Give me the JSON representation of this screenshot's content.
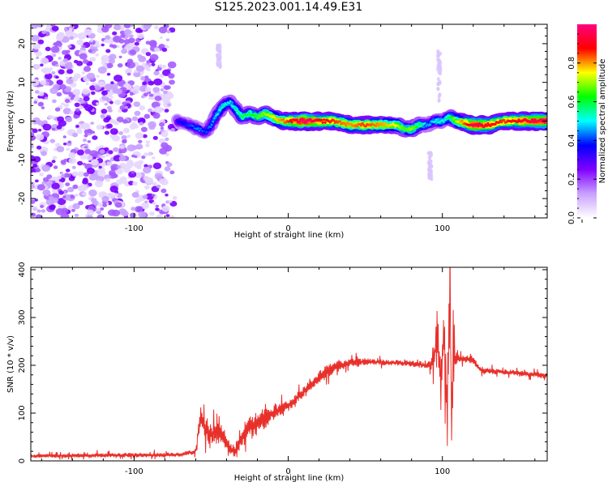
{
  "title": "S125.2023.001.14.49.E31",
  "chart_data": [
    {
      "type": "heatmap",
      "xlabel": "Height of straight line (km)",
      "ylabel": "Frequency (Hz)",
      "xlim": [
        -167,
        168
      ],
      "ylim": [
        -25,
        25
      ],
      "x_ticks": [
        -100,
        0,
        100
      ],
      "y_ticks": [
        -20,
        -10,
        0,
        10,
        20
      ],
      "colorbar": {
        "label": "Normalized spectral amplitude",
        "range": [
          0.0,
          1.0
        ],
        "ticks": [
          0.0,
          0.2,
          0.4,
          0.6,
          0.8
        ],
        "colors": [
          "#ffffff",
          "#c9a0ff",
          "#8000ff",
          "#0000ff",
          "#00ffff",
          "#00ff00",
          "#ffff00",
          "#ff0000",
          "#ff0080"
        ]
      },
      "noise_region_x": [
        -167,
        -75
      ],
      "signal_trace": {
        "x": [
          -72,
          -65,
          -58,
          -54,
          -50,
          -46,
          -42,
          -38,
          -34,
          -30,
          -25,
          -20,
          -15,
          -10,
          -5,
          0,
          10,
          20,
          30,
          40,
          50,
          60,
          70,
          75,
          80,
          85,
          90,
          95,
          98,
          100,
          105,
          110,
          120,
          130,
          140,
          150,
          160,
          168
        ],
        "y": [
          0,
          -1,
          -2,
          -3,
          -1,
          2,
          4,
          5,
          3,
          1,
          2,
          1,
          2,
          1,
          0,
          0,
          0,
          0,
          0,
          -1,
          -1,
          -1,
          -1,
          -2,
          -2,
          -1,
          -1,
          0,
          0,
          0,
          1,
          0,
          -1,
          -1,
          0,
          0,
          0,
          0
        ],
        "amplitude": [
          0.3,
          0.35,
          0.4,
          0.35,
          0.4,
          0.45,
          0.5,
          0.45,
          0.5,
          0.55,
          0.55,
          0.6,
          0.65,
          0.7,
          0.75,
          0.8,
          0.95,
          0.85,
          0.8,
          0.75,
          0.8,
          0.75,
          0.7,
          0.6,
          0.65,
          0.55,
          0.4,
          0.45,
          0.5,
          0.45,
          0.55,
          0.7,
          0.9,
          0.85,
          0.8,
          0.85,
          0.9,
          0.9
        ]
      }
    },
    {
      "type": "line",
      "xlabel": "Height of straight line (km)",
      "ylabel": "SNR (10 * v/v)",
      "xlim": [
        -167,
        168
      ],
      "ylim": [
        0,
        405
      ],
      "x_ticks": [
        -100,
        0,
        100
      ],
      "y_ticks": [
        0,
        100,
        200,
        300,
        400
      ],
      "line_color": "#e8302b",
      "series": [
        {
          "x": [
            -167,
            -140,
            -110,
            -90,
            -70,
            -60,
            -57,
            -54,
            -50,
            -46,
            -42,
            -38,
            -34,
            -30,
            -26,
            -22,
            -18,
            -14,
            -10,
            -5,
            0,
            5,
            10,
            15,
            20,
            25,
            30,
            35,
            40,
            50,
            60,
            70,
            80,
            85,
            90,
            93,
            95,
            97,
            99,
            101,
            103,
            105,
            106,
            107,
            108,
            110,
            115,
            120,
            125,
            130,
            140,
            150,
            160,
            168
          ],
          "y": [
            10,
            11,
            12,
            12,
            13,
            20,
            95,
            70,
            55,
            60,
            45,
            25,
            20,
            50,
            70,
            75,
            85,
            90,
            100,
            110,
            115,
            130,
            145,
            160,
            175,
            185,
            195,
            200,
            205,
            208,
            206,
            205,
            204,
            202,
            200,
            205,
            220,
            280,
            150,
            300,
            120,
            350,
            60,
            260,
            215,
            215,
            213,
            210,
            190,
            188,
            186,
            183,
            180,
            178
          ],
          "noise_amplitude": [
            6,
            8,
            8,
            8,
            8,
            10,
            40,
            45,
            40,
            45,
            40,
            30,
            20,
            35,
            45,
            45,
            40,
            35,
            30,
            25,
            20,
            20,
            20,
            20,
            22,
            25,
            22,
            18,
            16,
            12,
            10,
            10,
            12,
            12,
            12,
            30,
            60,
            90,
            90,
            110,
            110,
            130,
            50,
            110,
            40,
            12,
            12,
            12,
            10,
            10,
            10,
            10,
            10,
            10
          ]
        }
      ]
    }
  ]
}
